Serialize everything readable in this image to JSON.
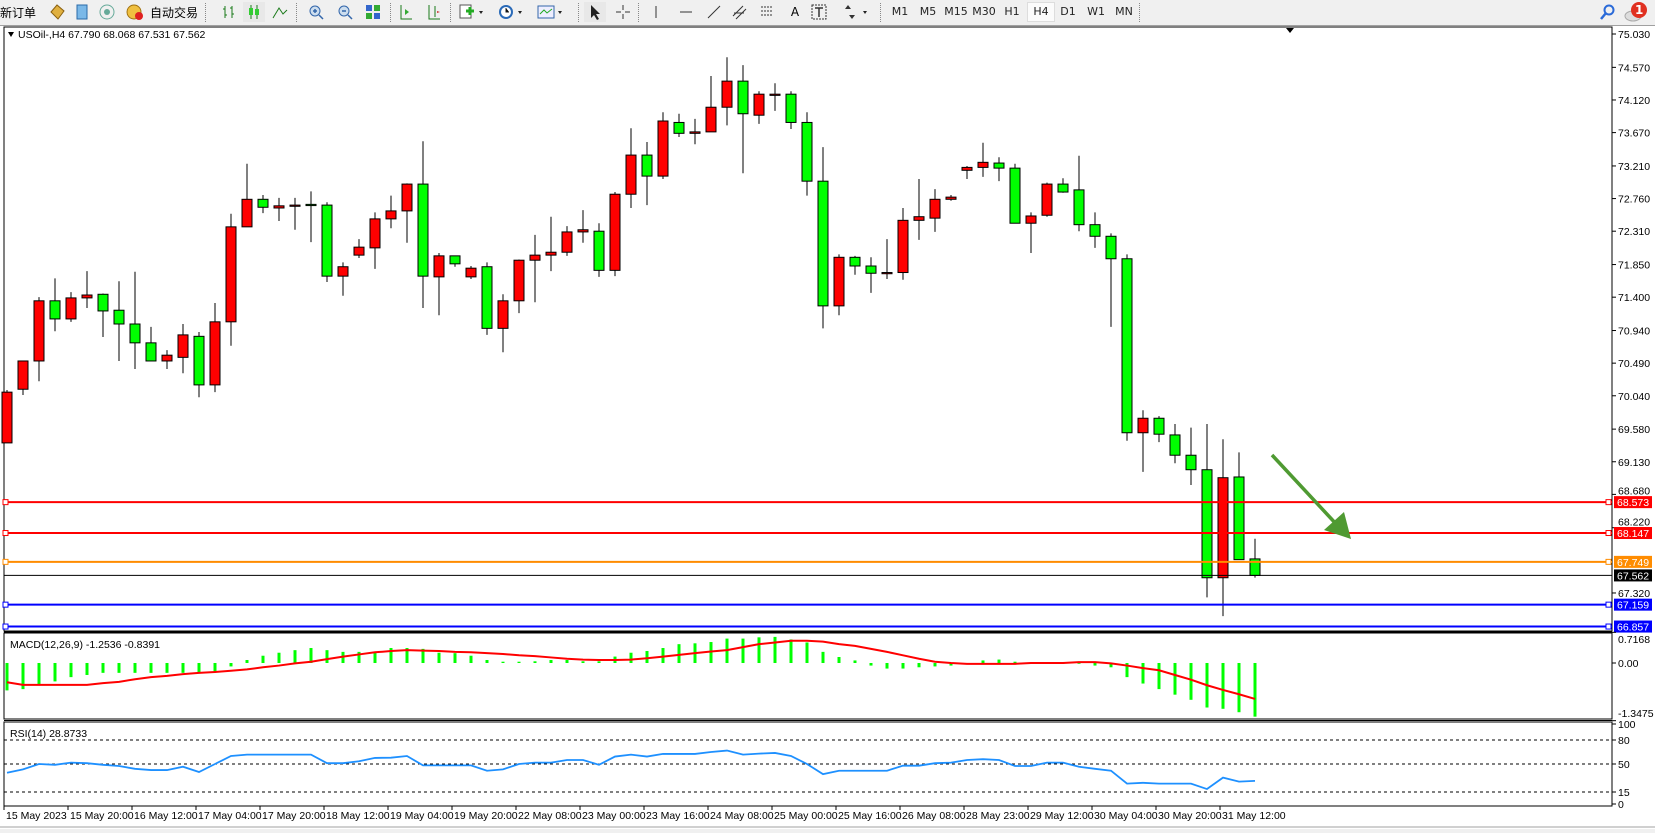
{
  "toolbar": {
    "new_order_label": "新订单",
    "autotrade_label": "自动交易",
    "icons": [
      "new-order-icon",
      "market-watch-icon",
      "data-window-icon",
      "signal-icon",
      "autotrade-icon",
      "bar-chart-icon",
      "candlestick-icon",
      "line-chart-icon",
      "zoom-in-icon",
      "zoom-out-icon",
      "tile-windows-icon",
      "chart-shift-icon",
      "autoscroll-icon",
      "indicators-icon",
      "periods-icon",
      "templates-icon",
      "cursor-icon",
      "crosshair-icon",
      "vertical-line-icon",
      "horizontal-line-icon",
      "trendline-icon",
      "equidistant-channel-icon",
      "fibonacci-icon",
      "text-icon",
      "text-label-icon",
      "arrows-icon",
      "search-icon",
      "notifications-icon"
    ],
    "text_tool_label": "A",
    "timeframes": [
      "M1",
      "M5",
      "M15",
      "M30",
      "H1",
      "H4",
      "D1",
      "W1",
      "MN"
    ],
    "active_timeframe": "H4",
    "notification_count": "1"
  },
  "chart": {
    "legend": "USOil-,H4  67.790 68.068 67.531 67.562",
    "symbol": "USOil-",
    "period": "H4",
    "colors": {
      "bull": "#ff0000",
      "bear": "#00ff00",
      "outline": "#000000"
    },
    "price_axis_labels": [
      "75.030",
      "74.570",
      "74.120",
      "73.670",
      "73.210",
      "72.760",
      "72.310",
      "71.850",
      "71.400",
      "70.940",
      "70.490",
      "70.040",
      "69.580",
      "69.130",
      "68.680",
      "68.220",
      "67.320"
    ],
    "price_lines": [
      {
        "price": 68.573,
        "label": "68.573",
        "color": "#ff0000"
      },
      {
        "price": 68.147,
        "label": "68.147",
        "color": "#ff0000"
      },
      {
        "price": 67.749,
        "label": "67.749",
        "color": "#ff8c00"
      },
      {
        "price": 67.562,
        "label": "67.562",
        "color": "#000000",
        "type": "bid"
      },
      {
        "price": 67.159,
        "label": "67.159",
        "color": "#0000ff"
      },
      {
        "price": 66.857,
        "label": "66.857",
        "color": "#0000ff"
      }
    ],
    "arrow_annotation": {
      "color": "#4f9a32",
      "direction": "down-right"
    },
    "time_labels": [
      "15 May 2023",
      "15 May 20:00",
      "16 May 12:00",
      "17 May 04:00",
      "17 May 20:00",
      "18 May 12:00",
      "19 May 04:00",
      "19 May 20:00",
      "22 May 08:00",
      "23 May 00:00",
      "23 May 16:00",
      "24 May 08:00",
      "25 May 00:00",
      "25 May 16:00",
      "26 May 08:00",
      "28 May 23:00",
      "29 May 12:00",
      "30 May 04:00",
      "30 May 20:00",
      "31 May 12:00"
    ]
  },
  "chart_data": {
    "type": "candlestick",
    "ohlc": [
      [
        69.39,
        70.12,
        69.39,
        70.09
      ],
      [
        70.13,
        70.52,
        70.05,
        70.52
      ],
      [
        70.52,
        71.4,
        70.24,
        71.35
      ],
      [
        71.35,
        71.66,
        70.93,
        71.1
      ],
      [
        71.1,
        71.47,
        71.06,
        71.39
      ],
      [
        71.39,
        71.76,
        71.25,
        71.43
      ],
      [
        71.44,
        71.45,
        70.85,
        71.21
      ],
      [
        71.22,
        71.62,
        70.52,
        71.03
      ],
      [
        71.03,
        71.75,
        70.41,
        70.77
      ],
      [
        70.77,
        70.99,
        70.52,
        70.52
      ],
      [
        70.52,
        70.67,
        70.41,
        70.6
      ],
      [
        70.57,
        71.03,
        70.35,
        70.88
      ],
      [
        70.86,
        70.92,
        70.02,
        70.19
      ],
      [
        70.19,
        71.32,
        70.09,
        71.06
      ],
      [
        71.06,
        72.55,
        70.73,
        72.37
      ],
      [
        72.37,
        73.24,
        72.37,
        72.75
      ],
      [
        72.75,
        72.81,
        72.56,
        72.64
      ],
      [
        72.63,
        72.77,
        72.45,
        72.66
      ],
      [
        72.67,
        72.77,
        72.33,
        72.67
      ],
      [
        72.68,
        72.86,
        72.16,
        72.67
      ],
      [
        72.67,
        72.71,
        71.61,
        71.69
      ],
      [
        71.69,
        71.88,
        71.42,
        71.82
      ],
      [
        71.98,
        72.2,
        71.94,
        72.09
      ],
      [
        72.08,
        72.57,
        71.79,
        72.48
      ],
      [
        72.48,
        72.8,
        72.35,
        72.59
      ],
      [
        72.59,
        72.97,
        72.15,
        72.96
      ],
      [
        72.96,
        73.55,
        71.25,
        71.69
      ],
      [
        71.68,
        72.01,
        71.15,
        71.97
      ],
      [
        71.97,
        71.97,
        71.82,
        71.86
      ],
      [
        71.68,
        71.83,
        71.65,
        71.8
      ],
      [
        71.82,
        71.88,
        70.88,
        70.97
      ],
      [
        70.97,
        71.44,
        70.64,
        71.35
      ],
      [
        71.35,
        71.92,
        71.18,
        71.91
      ],
      [
        71.91,
        72.26,
        71.33,
        71.98
      ],
      [
        71.98,
        72.51,
        71.76,
        72.02
      ],
      [
        72.02,
        72.38,
        71.97,
        72.3
      ],
      [
        72.3,
        72.6,
        72.15,
        72.33
      ],
      [
        72.31,
        72.42,
        71.68,
        71.77
      ],
      [
        71.77,
        72.85,
        71.69,
        72.82
      ],
      [
        72.82,
        73.73,
        72.63,
        73.36
      ],
      [
        73.36,
        73.54,
        72.67,
        73.07
      ],
      [
        73.07,
        73.95,
        73.03,
        73.83
      ],
      [
        73.81,
        73.93,
        73.61,
        73.66
      ],
      [
        73.66,
        73.86,
        73.51,
        73.68
      ],
      [
        73.68,
        74.45,
        73.68,
        74.02
      ],
      [
        74.02,
        74.71,
        73.77,
        74.38
      ],
      [
        74.38,
        74.6,
        73.11,
        73.93
      ],
      [
        73.91,
        74.24,
        73.79,
        74.2
      ],
      [
        74.19,
        74.35,
        73.97,
        74.2
      ],
      [
        74.2,
        74.24,
        73.72,
        73.81
      ],
      [
        73.81,
        73.95,
        72.8,
        73.0
      ],
      [
        73.0,
        73.47,
        70.97,
        71.28
      ],
      [
        71.28,
        71.99,
        71.15,
        71.95
      ],
      [
        71.95,
        71.97,
        71.71,
        71.83
      ],
      [
        71.83,
        71.95,
        71.46,
        71.73
      ],
      [
        71.73,
        72.2,
        71.65,
        71.74
      ],
      [
        71.74,
        72.63,
        71.64,
        72.46
      ],
      [
        72.46,
        73.03,
        72.19,
        72.51
      ],
      [
        72.49,
        72.89,
        72.3,
        72.75
      ],
      [
        72.75,
        72.81,
        72.73,
        72.78
      ],
      [
        73.15,
        73.21,
        73.03,
        73.19
      ],
      [
        73.19,
        73.53,
        73.06,
        73.26
      ],
      [
        73.25,
        73.33,
        73.0,
        73.18
      ],
      [
        73.18,
        73.24,
        72.42,
        72.42
      ],
      [
        72.42,
        72.57,
        72.01,
        72.52
      ],
      [
        72.53,
        72.98,
        72.51,
        72.96
      ],
      [
        72.96,
        73.04,
        72.84,
        72.85
      ],
      [
        72.88,
        73.35,
        72.31,
        72.4
      ],
      [
        72.4,
        72.57,
        72.08,
        72.24
      ],
      [
        72.24,
        72.28,
        70.99,
        71.93
      ],
      [
        71.93,
        71.99,
        69.42,
        69.53
      ],
      [
        69.53,
        69.84,
        68.99,
        69.73
      ],
      [
        69.73,
        69.76,
        69.4,
        69.51
      ],
      [
        69.5,
        69.65,
        69.11,
        69.22
      ],
      [
        69.22,
        69.6,
        68.81,
        69.02
      ],
      [
        69.02,
        69.65,
        67.26,
        67.53
      ],
      [
        67.53,
        69.44,
        67.0,
        68.91
      ],
      [
        68.92,
        69.26,
        67.78,
        67.78
      ],
      [
        67.79,
        68.068,
        67.531,
        67.562
      ]
    ],
    "price_range": [
      66.8,
      75.13
    ],
    "macd": {
      "label": "MACD(12,26,9) -1.2536 -0.8391",
      "axis_labels": [
        "0.7168",
        "0.00",
        "-1.3475"
      ],
      "range": [
        -1.3475,
        0.7168
      ],
      "histogram_color": "#00ff00",
      "signal_color": "#ff0000",
      "histogram": [
        -0.64,
        -0.61,
        -0.49,
        -0.43,
        -0.33,
        -0.28,
        -0.23,
        -0.23,
        -0.23,
        -0.23,
        -0.23,
        -0.23,
        -0.23,
        -0.2,
        -0.08,
        0.07,
        0.17,
        0.24,
        0.3,
        0.35,
        0.3,
        0.26,
        0.26,
        0.26,
        0.35,
        0.35,
        0.33,
        0.24,
        0.23,
        0.17,
        0.07,
        0.03,
        0.03,
        0.04,
        0.07,
        0.07,
        0.04,
        0.04,
        0.15,
        0.24,
        0.28,
        0.35,
        0.44,
        0.46,
        0.49,
        0.57,
        0.57,
        0.6,
        0.61,
        0.55,
        0.48,
        0.26,
        0.14,
        0.06,
        -0.06,
        -0.13,
        -0.13,
        -0.1,
        -0.08,
        -0.06,
        0.0,
        0.06,
        0.08,
        0.03,
        0.0,
        0.0,
        0.0,
        0.0,
        -0.06,
        -0.1,
        -0.33,
        -0.48,
        -0.61,
        -0.74,
        -0.86,
        -1.04,
        -1.07,
        -1.15,
        -1.2536
      ],
      "signal": [
        -0.45,
        -0.51,
        -0.51,
        -0.51,
        -0.51,
        -0.51,
        -0.47,
        -0.44,
        -0.38,
        -0.33,
        -0.3,
        -0.26,
        -0.23,
        -0.21,
        -0.18,
        -0.15,
        -0.1,
        -0.06,
        -0.01,
        0.03,
        0.09,
        0.15,
        0.2,
        0.25,
        0.28,
        0.3,
        0.29,
        0.28,
        0.26,
        0.25,
        0.23,
        0.21,
        0.18,
        0.16,
        0.13,
        0.1,
        0.08,
        0.07,
        0.07,
        0.08,
        0.11,
        0.15,
        0.19,
        0.23,
        0.27,
        0.3,
        0.37,
        0.44,
        0.48,
        0.52,
        0.52,
        0.5,
        0.44,
        0.4,
        0.33,
        0.26,
        0.18,
        0.1,
        0.03,
        0.0,
        -0.02,
        -0.02,
        -0.02,
        -0.02,
        0.0,
        0.0,
        0.0,
        0.02,
        0.02,
        -0.01,
        -0.06,
        -0.12,
        -0.17,
        -0.28,
        -0.39,
        -0.52,
        -0.63,
        -0.73,
        -0.8391
      ]
    },
    "rsi": {
      "label": "RSI(14) 28.8733",
      "axis_labels": [
        "100",
        "80",
        "50",
        "15",
        "0"
      ],
      "levels": [
        80,
        50,
        15
      ],
      "range": [
        0,
        100
      ],
      "color": "#1e90ff",
      "values": [
        39,
        43.3,
        50,
        49,
        51.7,
        51,
        49,
        47.5,
        44,
        42.4,
        42.4,
        46.6,
        40,
        50,
        60,
        61.7,
        61.7,
        61.7,
        61.7,
        61.7,
        51,
        51,
        53.4,
        57.6,
        57.9,
        60,
        48.3,
        48.3,
        48.3,
        48.3,
        41.6,
        43.3,
        50,
        51.7,
        51.7,
        55,
        55,
        49,
        59.3,
        61.7,
        59.3,
        62.6,
        62.6,
        62.6,
        65,
        66.8,
        61.7,
        63,
        63.8,
        60,
        50,
        37.3,
        41.6,
        41.6,
        41.6,
        41.6,
        47.9,
        47.9,
        51,
        51.7,
        55,
        56,
        55,
        47.5,
        47.5,
        51.7,
        51.7,
        46.6,
        44,
        41.6,
        25.5,
        26.5,
        25.5,
        25.5,
        25.5,
        18.7,
        33,
        28,
        28.8733
      ]
    }
  }
}
